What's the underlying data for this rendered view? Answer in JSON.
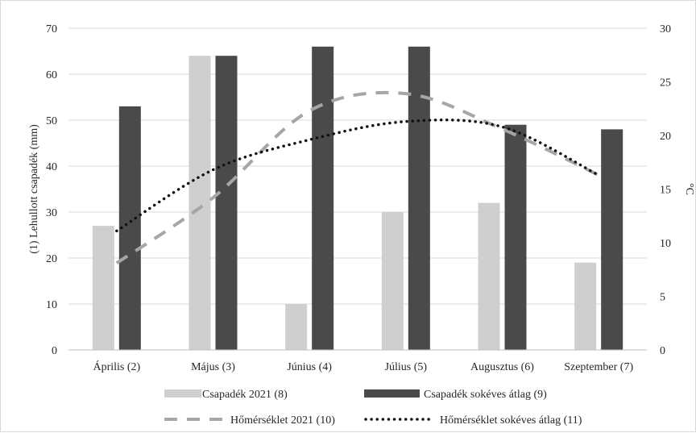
{
  "chart_data": {
    "type": "bar",
    "title": "",
    "categories": [
      "Április (2)",
      "Május (3)",
      "Június (4)",
      "Július (5)",
      "Augusztus (6)",
      "Szeptember (7)"
    ],
    "series": [
      {
        "name": "Csapadék 2021 (8)",
        "kind": "bar",
        "axis": "left",
        "color": "#cfcfcf",
        "values": [
          27,
          64,
          10,
          30,
          32,
          19
        ]
      },
      {
        "name": "Csapadék sokéves átlag (9)",
        "kind": "bar",
        "axis": "left",
        "color": "#4a4a4a",
        "values": [
          53,
          64,
          66,
          66,
          49,
          48
        ]
      },
      {
        "name": "Hőmérséklet 2021 (10)",
        "kind": "line",
        "style": "dashed",
        "axis": "right",
        "color": "#a6a6a6",
        "values": [
          8.1,
          14.2,
          22.3,
          23.9,
          20.6,
          16.3
        ]
      },
      {
        "name": "Hőmérséklet sokéves átlag (11)",
        "kind": "line",
        "style": "dotted",
        "axis": "right",
        "color": "#111111",
        "values": [
          11.1,
          16.8,
          19.6,
          21.3,
          20.8,
          16.3
        ]
      }
    ],
    "ylabel": "(1) Lehullott csapadék (mm)",
    "ylim": [
      0,
      70
    ],
    "yticks": [
      "0",
      "10",
      "20",
      "30",
      "40",
      "50",
      "60",
      "70"
    ],
    "y2label": "°C",
    "y2lim": [
      0,
      30
    ],
    "y2ticks": [
      "0",
      "5",
      "10",
      "15",
      "20",
      "25",
      "30"
    ],
    "grid": true,
    "legend_position": "bottom"
  }
}
